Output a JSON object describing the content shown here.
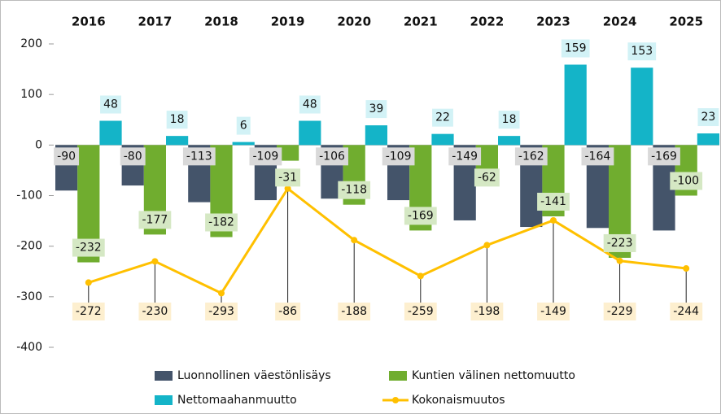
{
  "chart_data": {
    "type": "bar_line",
    "categories": [
      "2016",
      "2017",
      "2018",
      "2019",
      "2020",
      "2021",
      "2022",
      "2023",
      "2024",
      "2025"
    ],
    "series": [
      {
        "name": "Luonnollinen väestönlisäys",
        "type": "bar",
        "color": "#44546a",
        "label_bg": "#d9d9d9",
        "values": [
          -90,
          -80,
          -113,
          -109,
          -106,
          -109,
          -149,
          -162,
          -164,
          -169
        ]
      },
      {
        "name": "Kuntien välinen nettomuutto",
        "type": "bar",
        "color": "#70ad2f",
        "label_bg": "#d5e8c4",
        "values": [
          -232,
          -177,
          -182,
          -31,
          -118,
          -169,
          -62,
          -141,
          -223,
          -100
        ]
      },
      {
        "name": "Nettomaahanmuutto",
        "type": "bar",
        "color": "#14b4c8",
        "label_bg": "#d2f2f6",
        "values": [
          48,
          18,
          6,
          48,
          39,
          22,
          18,
          159,
          153,
          23
        ]
      },
      {
        "name": "Kokonaismuutos",
        "type": "line",
        "color": "#ffc000",
        "label_bg": "#fdefcf",
        "values": [
          -272,
          -230,
          -293,
          -86,
          -188,
          -259,
          -198,
          -149,
          -229,
          -244
        ]
      }
    ],
    "ylim": [
      -400,
      200
    ],
    "yticks": [
      200,
      100,
      0,
      -100,
      -200,
      -300,
      -400
    ],
    "grid": false
  }
}
